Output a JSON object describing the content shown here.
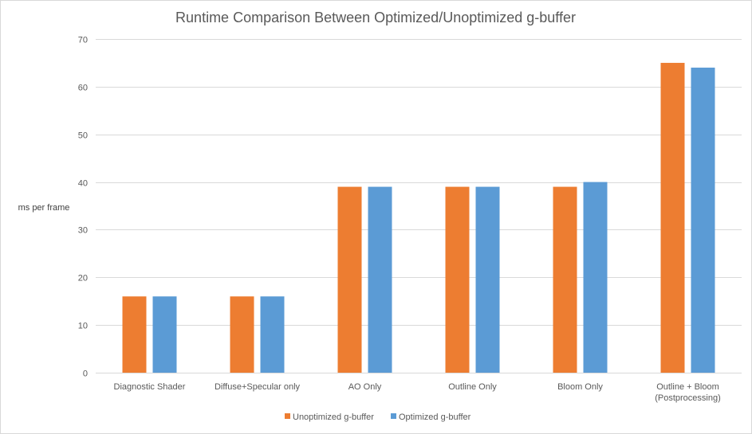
{
  "chart_data": {
    "type": "bar",
    "title": "Runtime Comparison Between Optimized/Unoptimized g-buffer",
    "xlabel": "",
    "ylabel": "ms per frame",
    "ylim": [
      0,
      70
    ],
    "yticks": [
      0,
      10,
      20,
      30,
      40,
      50,
      60,
      70
    ],
    "grid": true,
    "legend_position": "bottom",
    "categories": [
      [
        "Diagnostic Shader"
      ],
      [
        "Diffuse+Specular only"
      ],
      [
        "AO Only"
      ],
      [
        "Outline Only"
      ],
      [
        "Bloom Only"
      ],
      [
        "Outline + Bloom",
        "(Postprocessing)"
      ]
    ],
    "series": [
      {
        "name": "Unoptimized g-buffer",
        "color": "#ed7d31",
        "values": [
          16,
          16,
          39,
          39,
          39,
          65
        ]
      },
      {
        "name": "Optimized g-buffer",
        "color": "#5b9bd5",
        "values": [
          16,
          16,
          39,
          39,
          40,
          64
        ]
      }
    ],
    "colors": {
      "grid": "#d9d9d9",
      "text": "#595959"
    }
  }
}
